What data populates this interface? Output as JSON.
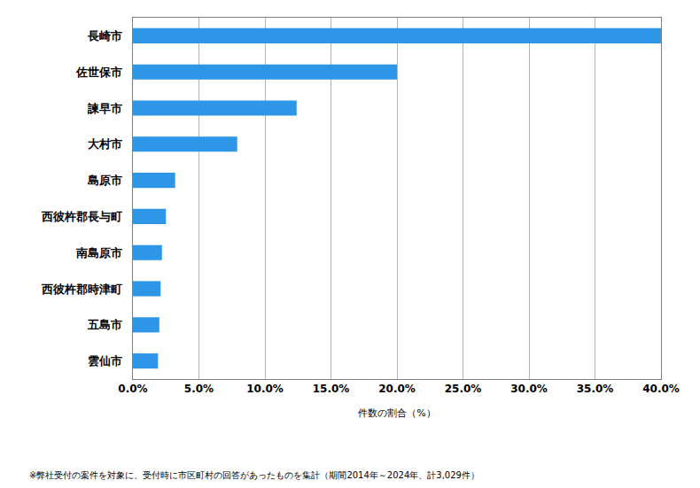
{
  "chart_data": {
    "type": "bar",
    "orientation": "horizontal",
    "categories": [
      "長崎市",
      "佐世保市",
      "諫早市",
      "大村市",
      "島原市",
      "西彼杵郡長与町",
      "南島原市",
      "西彼杵郡時津町",
      "五島市",
      "雲仙市"
    ],
    "values": [
      40.0,
      20.0,
      12.4,
      7.9,
      3.2,
      2.5,
      2.2,
      2.1,
      2.0,
      1.9
    ],
    "color": "#2e96e6",
    "x_label": "件数の割合（%）",
    "xlim": [
      0,
      40
    ],
    "xticks": [
      {
        "value": 0,
        "label": "0.0%"
      },
      {
        "value": 5,
        "label": "5.0%"
      },
      {
        "value": 10,
        "label": "10.0%"
      },
      {
        "value": 15,
        "label": "15.0%"
      },
      {
        "value": 20,
        "label": "20.0%"
      },
      {
        "value": 25,
        "label": "25.0%"
      },
      {
        "value": 30,
        "label": "30.0%"
      },
      {
        "value": 35,
        "label": "35.0%"
      },
      {
        "value": 40,
        "label": "40.0%"
      }
    ],
    "grid": true,
    "annotations": [
      "※弊社受付の案件を対象に、受付時に市区町村の回答があったものを集計（期間2014年～2024年、計3,029件）"
    ]
  }
}
